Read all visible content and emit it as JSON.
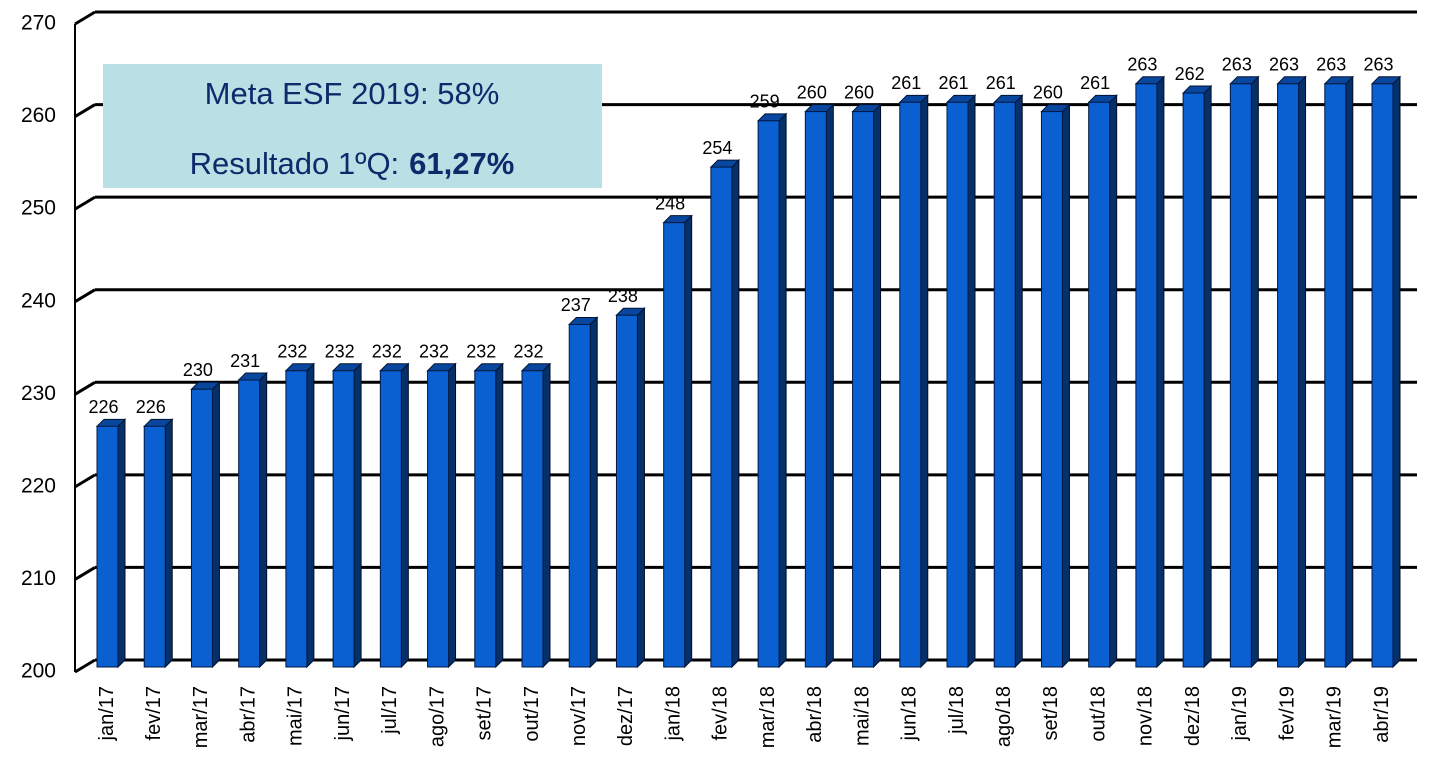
{
  "chart_data": {
    "type": "bar",
    "categories": [
      "jan/17",
      "fev/17",
      "mar/17",
      "abr/17",
      "mai/17",
      "jun/17",
      "jul/17",
      "ago/17",
      "set/17",
      "out/17",
      "nov/17",
      "dez/17",
      "jan/18",
      "fev/18",
      "mar/18",
      "abr/18",
      "mai/18",
      "jun/18",
      "jul/18",
      "ago/18",
      "set/18",
      "out/18",
      "nov/18",
      "dez/18",
      "jan/19",
      "fev/19",
      "mar/19",
      "abr/19"
    ],
    "values": [
      226,
      226,
      230,
      231,
      232,
      232,
      232,
      232,
      232,
      232,
      237,
      238,
      248,
      254,
      259,
      260,
      260,
      261,
      261,
      261,
      260,
      261,
      263,
      262,
      263,
      263,
      263,
      263
    ],
    "color": "#0a5fd1",
    "ylim": [
      200,
      270
    ],
    "yticks": [
      200,
      210,
      220,
      230,
      240,
      250,
      260,
      270
    ],
    "grid": true,
    "annotation": {
      "line1": "Meta ESF 2019: 58%",
      "line2": "Resultado 1ºQ:",
      "line2_bold": "61,27%"
    }
  }
}
